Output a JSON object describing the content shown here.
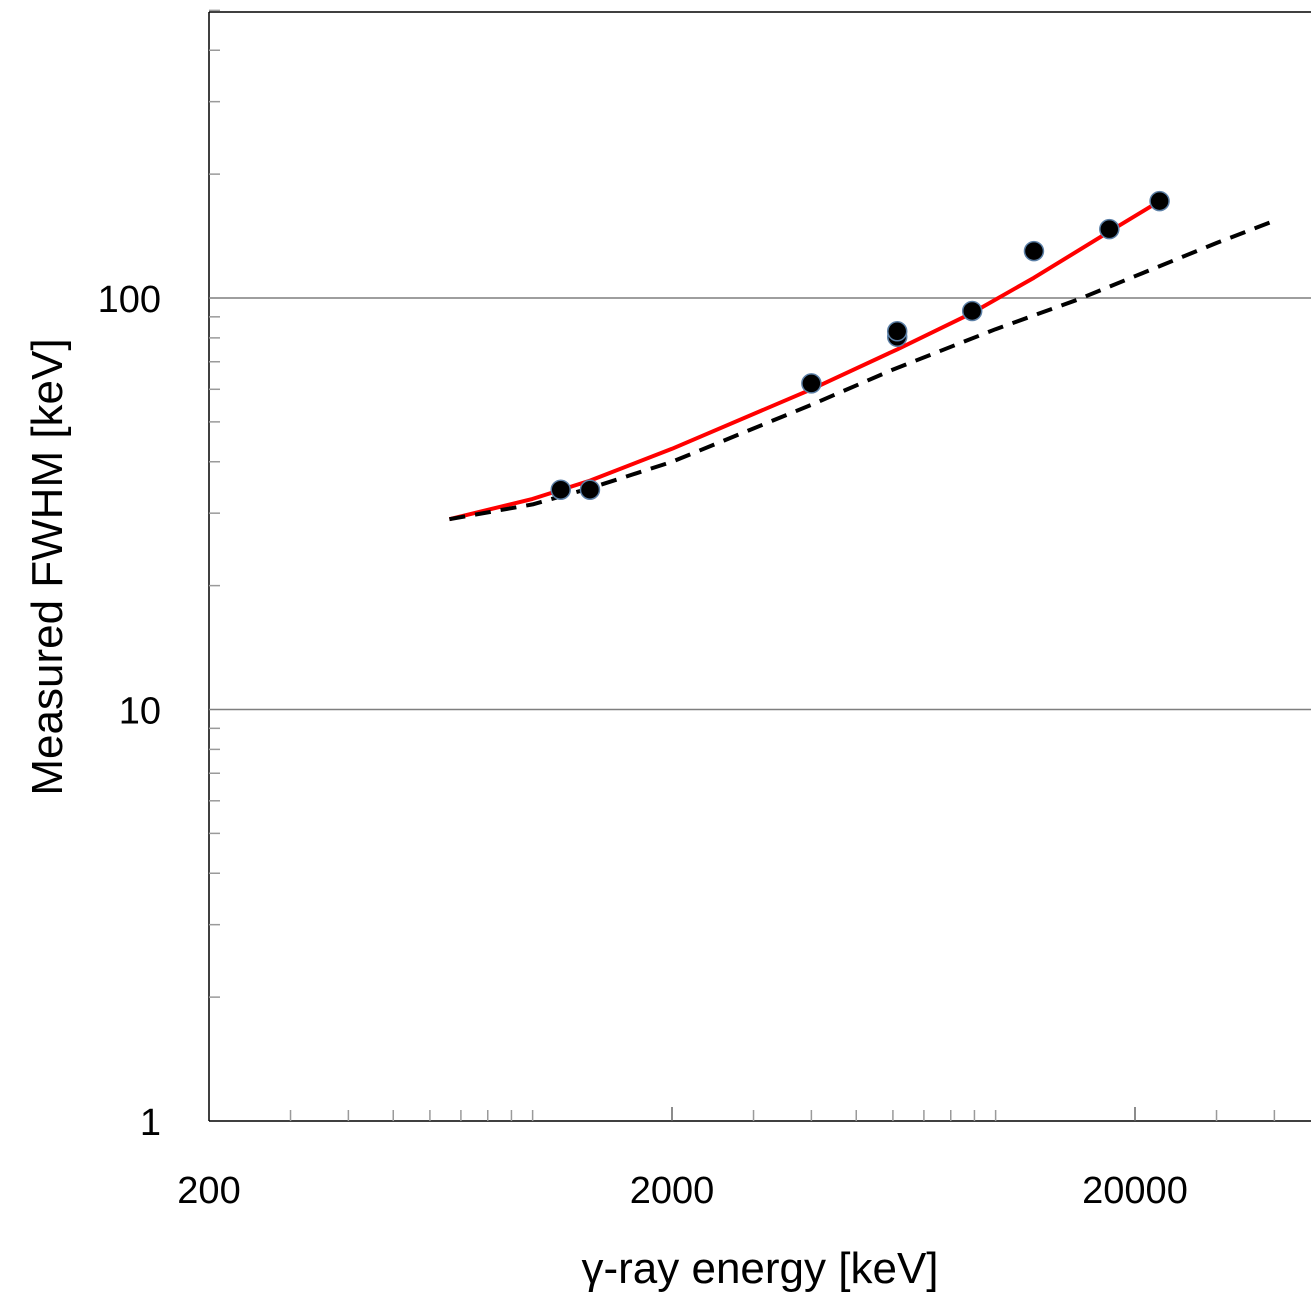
{
  "chart_data": {
    "type": "scatter",
    "xlabel": "γ-ray energy [keV]",
    "ylabel": "Measured FWHM [keV]",
    "x_scale": "log",
    "y_scale": "log",
    "xlim": [
      200,
      60000
    ],
    "ylim": [
      1,
      500
    ],
    "x_ticks": [
      200,
      2000,
      20000
    ],
    "x_tick_labels": [
      "200",
      "2000",
      "20000"
    ],
    "y_ticks": [
      1,
      10,
      100
    ],
    "y_tick_labels": [
      "1",
      "10",
      "100"
    ],
    "grid": "horizontal major gridlines",
    "series": [
      {
        "style": "points",
        "color": "#000000",
        "x": [
          1150,
          1330,
          4000,
          6130,
          6130,
          8900,
          12100,
          17600,
          22600
        ],
        "y": [
          34.2,
          34.2,
          62.0,
          80.5,
          83.0,
          93.0,
          130.0,
          147.0,
          172.0
        ]
      },
      {
        "style": "solid-line",
        "color": "#ff0000",
        "x": [
          661,
          1000,
          1330,
          2000,
          4000,
          6130,
          8900,
          12100,
          17600,
          22600
        ],
        "y": [
          29.0,
          32.5,
          36.0,
          43.0,
          60.0,
          75.0,
          92.0,
          112.0,
          145.0,
          172.0
        ]
      },
      {
        "style": "dashed-line",
        "color": "#000000",
        "x": [
          661,
          1000,
          1330,
          2000,
          4000,
          6000,
          10000,
          15000,
          20000,
          30000,
          40000
        ],
        "y": [
          29.0,
          31.5,
          34.5,
          40.0,
          55.0,
          67.0,
          84.0,
          99.0,
          113.0,
          136.0,
          154.0
        ]
      }
    ]
  }
}
